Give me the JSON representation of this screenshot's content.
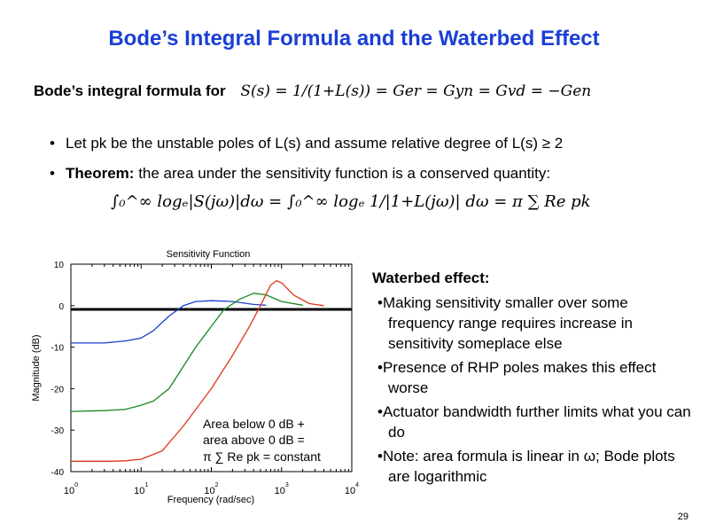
{
  "title": "Bode’s Integral Formula and the Waterbed Effect",
  "intro": {
    "label": "Bode’s integral formula for",
    "formula": "S(s) = 1/(1+L(s)) = Ger = Gyn = Gvd = −Gen"
  },
  "bullets": [
    {
      "text": "Let pk be the unstable poles of L(s) and assume relative degree of L(s) ≥ 2"
    },
    {
      "bold": "Theorem:",
      "text": " the area under the sensitivity function is a conserved quantity:"
    }
  ],
  "integral": "∫₀^∞ logₑ|S(jω)|dω = ∫₀^∞ logₑ 1/|1+L(jω)| dω = π ∑ Re pk",
  "waterbed": {
    "heading": "Waterbed effect:",
    "items": [
      "Making sensitivity smaller over some frequency range requires increase in sensitivity someplace else",
      "Presence of RHP poles makes this effect worse",
      "Actuator bandwidth further limits what you can do",
      "Note: area formula is linear in ω; Bode plots are logarithmic"
    ]
  },
  "page_number": "29",
  "chart_data": {
    "type": "line",
    "title": "Sensitivity Function",
    "xlabel": "Frequency (rad/sec)",
    "ylabel": "Magnitude (dB)",
    "xscale": "log",
    "xlim": [
      1,
      10000
    ],
    "ylim": [
      -40,
      10
    ],
    "xticks": [
      "10^0",
      "10^1",
      "10^2",
      "10^3",
      "10^4"
    ],
    "yticks": [
      "10",
      "0",
      "-10",
      "-20",
      "-30",
      "-40"
    ],
    "annotation": [
      "Area below 0 dB +",
      "area above 0 dB =",
      "π ∑ Re pk = constant"
    ],
    "series": [
      {
        "name": "blue",
        "color": "#1f3fd0",
        "x": [
          1,
          3,
          6,
          10,
          15,
          25,
          40,
          60,
          100,
          200,
          400,
          600
        ],
        "y": [
          -9,
          -9,
          -8.5,
          -7.8,
          -6,
          -2.5,
          0,
          1,
          1.2,
          1,
          0.3,
          0.1
        ]
      },
      {
        "name": "green",
        "color": "#148a1e",
        "x": [
          1,
          3,
          6,
          10,
          15,
          25,
          60,
          150,
          250,
          400,
          600,
          1000,
          2000
        ],
        "y": [
          -25.5,
          -25.3,
          -25,
          -24,
          -23,
          -20,
          -10,
          -1,
          1.5,
          3,
          2.6,
          1,
          0.1
        ]
      },
      {
        "name": "red",
        "color": "#e0341c",
        "x": [
          1,
          4,
          6,
          10,
          20,
          40,
          100,
          200,
          350,
          500,
          700,
          850,
          1000,
          1500,
          2500,
          4000
        ],
        "y": [
          -37.5,
          -37.5,
          -37.4,
          -37,
          -35,
          -29,
          -20,
          -12,
          -5,
          0,
          5,
          6,
          5.5,
          2.5,
          0.5,
          0
        ]
      }
    ]
  }
}
